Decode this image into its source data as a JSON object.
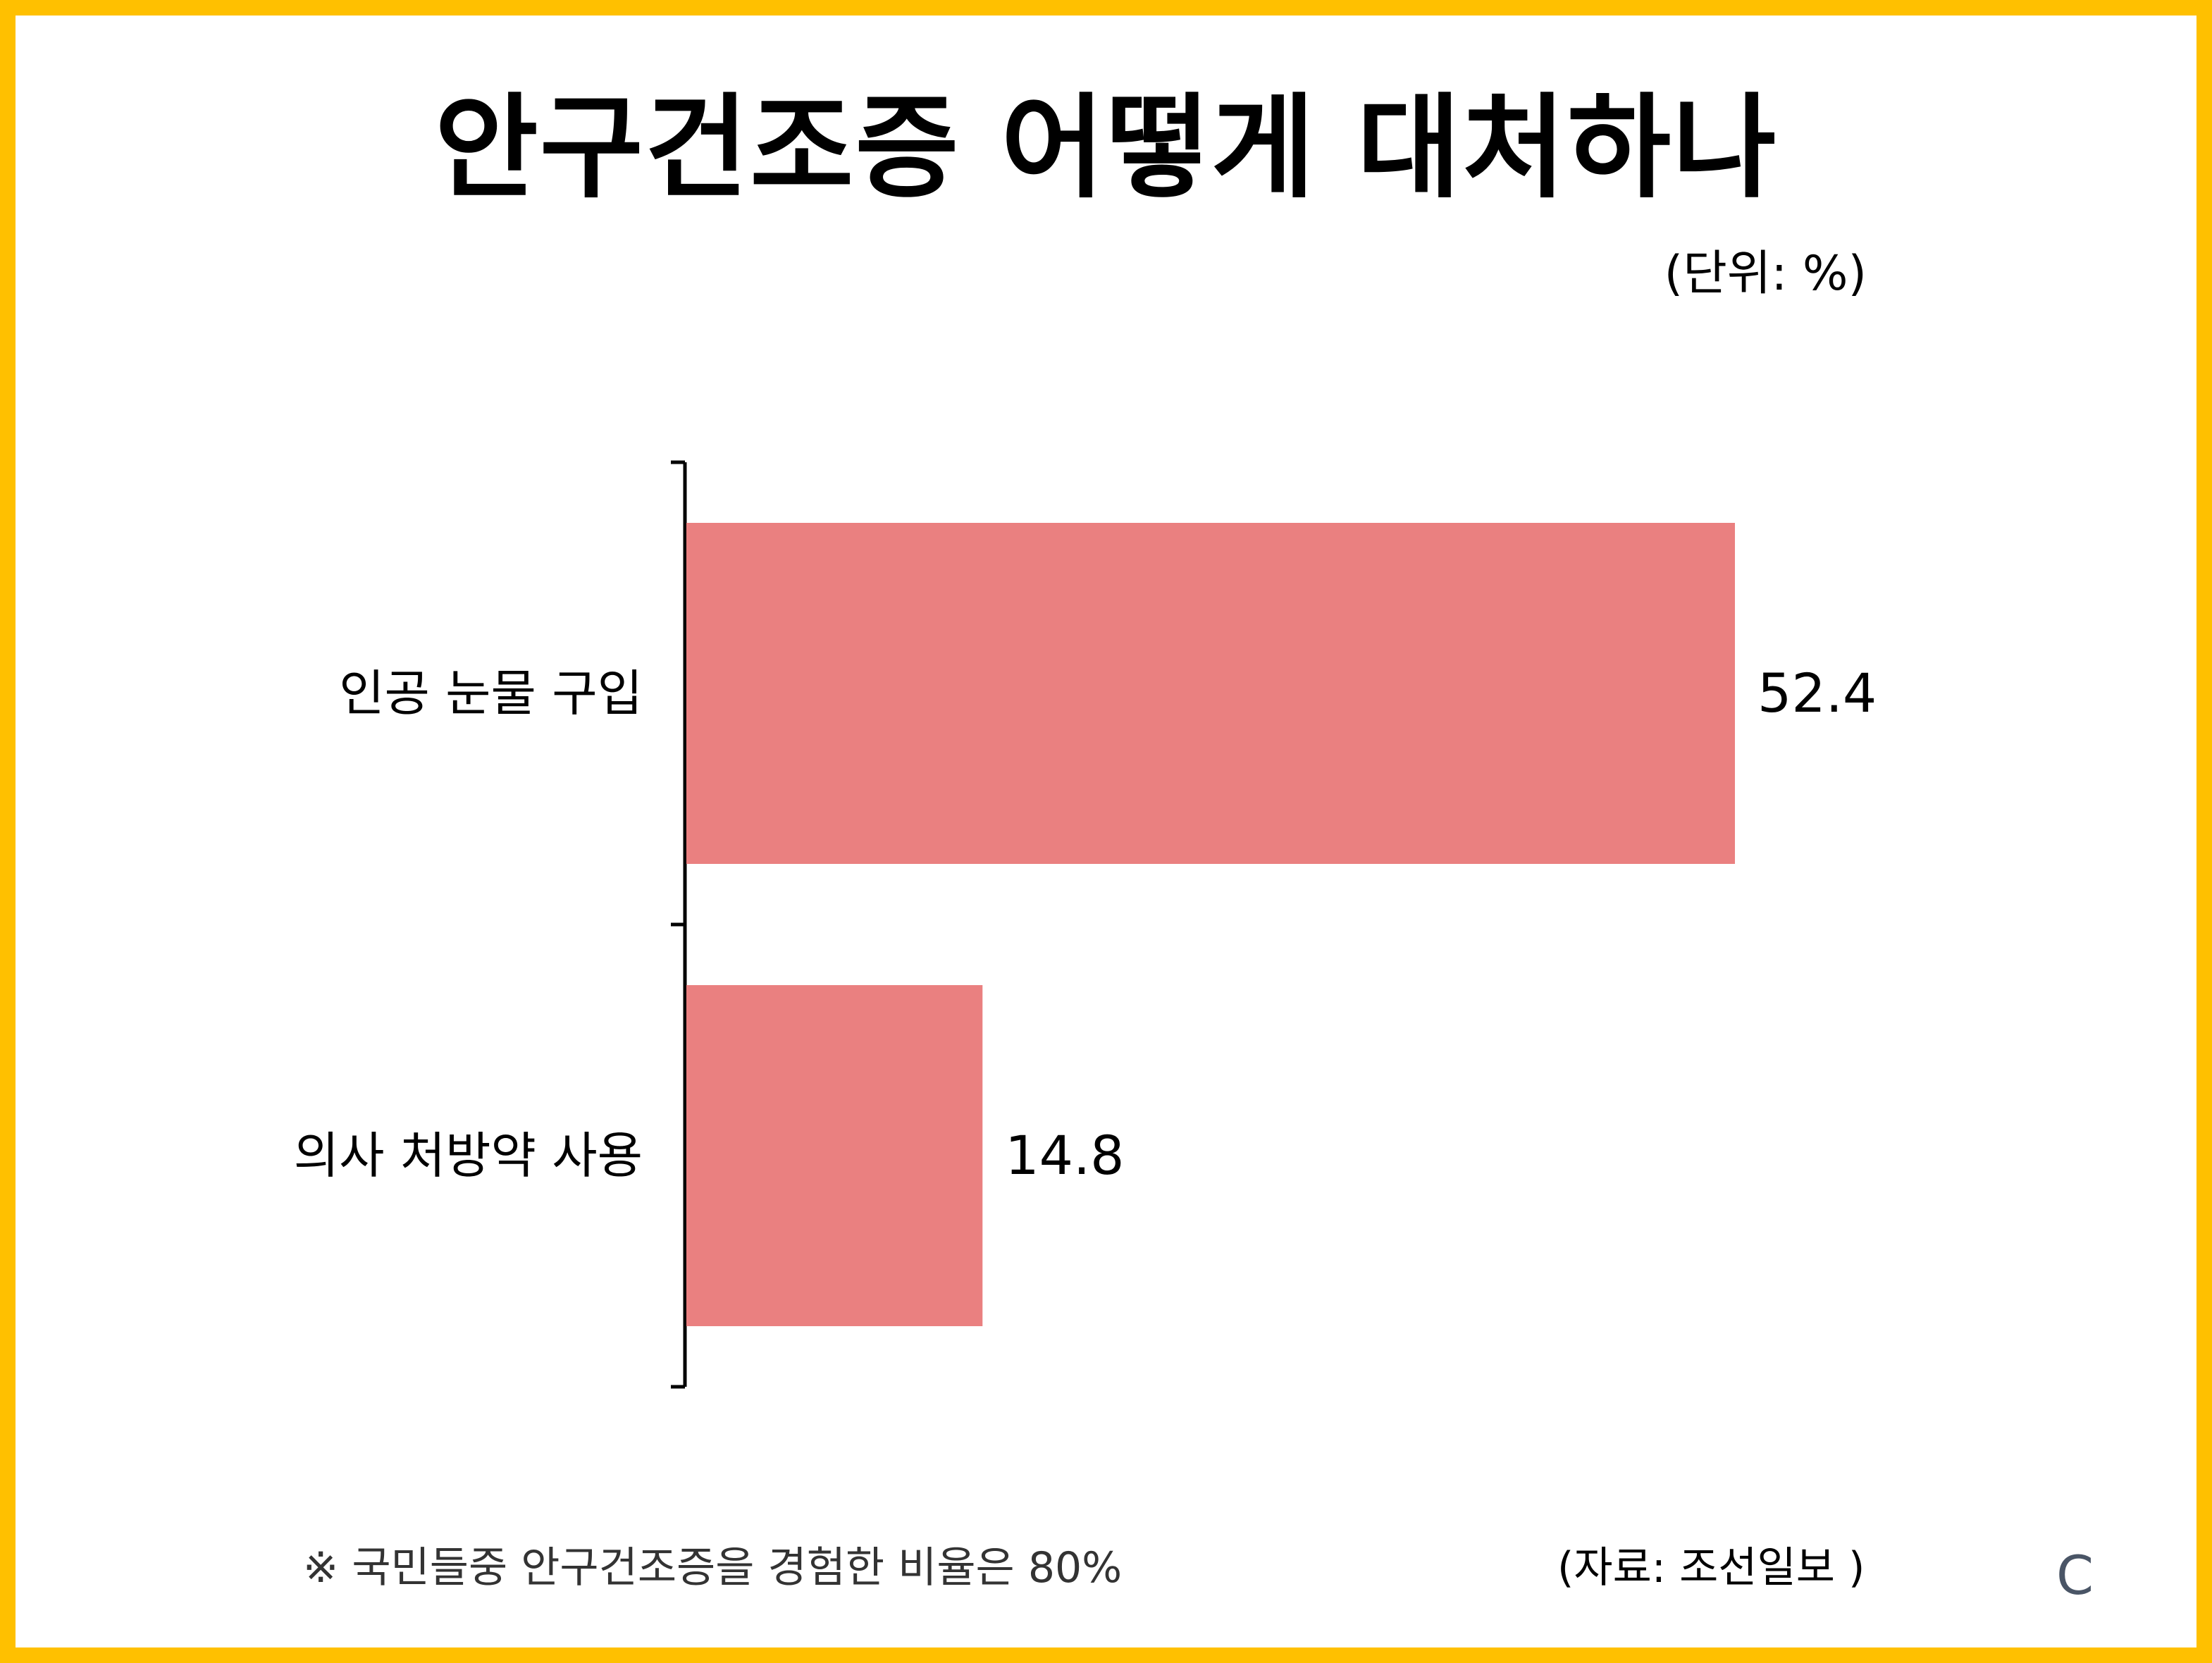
{
  "chart_data": {
    "type": "bar",
    "orientation": "horizontal",
    "title": "안구건조증 어떻게 대처하나",
    "unit_label": "(단위: %)",
    "categories": [
      "인공 눈물 구입",
      "의사 처방약 사용"
    ],
    "values": [
      52.4,
      14.8
    ],
    "value_labels": [
      "52.4",
      "14.8"
    ],
    "xlim": [
      0,
      60
    ],
    "grid": false,
    "bar_color": "#EA8080"
  },
  "footnote": "※ 국민들중 안구건조증을 경험한 비율은 80%",
  "source": "(자료: 조선일보 )",
  "corner_mark": "C",
  "colors": {
    "border": "#FFC000",
    "bar": "#EA8080",
    "axis": "#000000"
  }
}
